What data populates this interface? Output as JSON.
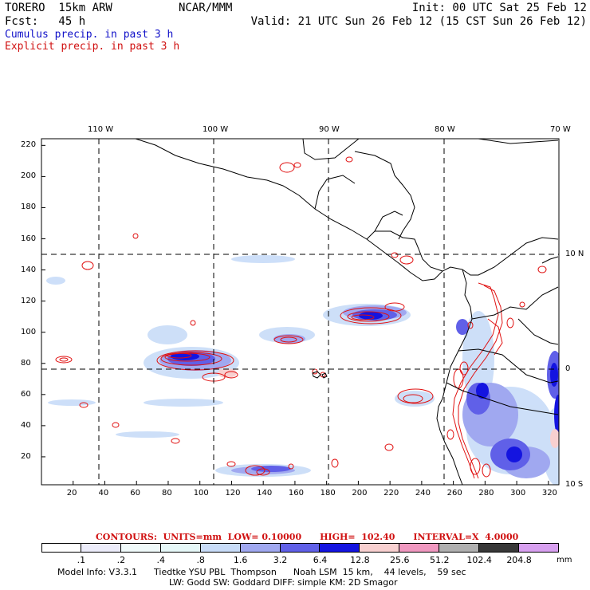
{
  "header": {
    "model_left": "TORERO  15km ARW",
    "org": "NCAR/MMM",
    "init": "Init: 00 UTC Sat 25 Feb 12",
    "fcst": "Fcst:   45 h",
    "valid": "Valid: 21 UTC Sun 26 Feb 12 (15 CST Sun 26 Feb 12)",
    "legend_cumulus": "Cumulus precip. in past 3 h",
    "legend_explicit": "Explicit precip. in past 3 h"
  },
  "colors": {
    "cumulus_text": "#1010c8",
    "explicit_text": "#d01010",
    "explicit_contour": "#e01010",
    "coast": "#000000"
  },
  "axes": {
    "top_labels": [
      "110 W",
      "100 W",
      "90 W",
      "80 W",
      "70 W"
    ],
    "right_labels": [
      "10 N",
      "0",
      "10 S"
    ],
    "x_ticks": [
      "20",
      "40",
      "60",
      "80",
      "100",
      "120",
      "140",
      "160",
      "180",
      "200",
      "220",
      "240",
      "260",
      "280",
      "300",
      "320"
    ],
    "y_ticks": [
      "220",
      "200",
      "180",
      "160",
      "140",
      "120",
      "100",
      "80",
      "60",
      "40",
      "20"
    ]
  },
  "colorbar": {
    "contours_line": "CONTOURS:  UNITS=mm  LOW= 0.10000      HIGH=  102.40      INTERVAL=X  4.0000",
    "labels": [
      ".1",
      ".2",
      ".4",
      ".8",
      "1.6",
      "3.2",
      "6.4",
      "12.8",
      "25.6",
      "51.2",
      "102.4",
      "204.8"
    ],
    "unit": "mm",
    "colors": [
      "#ffffff",
      "#ececfa",
      "#f0fafa",
      "#e6f8f8",
      "#c8dcf8",
      "#a0a8f0",
      "#6060e8",
      "#1414e0",
      "#f8d0d0",
      "#f098c0",
      "#b0b0b0",
      "#383838",
      "#d8a0f0"
    ]
  },
  "footer": {
    "line1": "Model Info: V3.3.1      Tiedtke YSU PBL  Thompson      Noah LSM  15 km,    44 levels,    59 sec",
    "line2": "LW: Godd SW: Goddard DIFF: simple KM: 2D Smagor"
  }
}
